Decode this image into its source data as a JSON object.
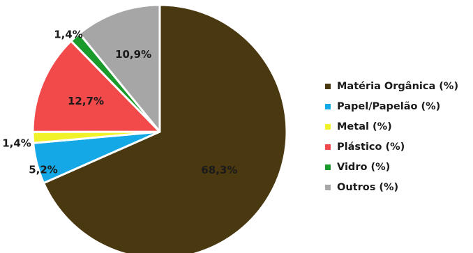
{
  "chart_data": {
    "type": "pie",
    "title": "",
    "legend_position": "right",
    "slices": [
      {
        "name": "Matéria Orgânica (%)",
        "value": 68.3,
        "label": "68,3%",
        "color": "#4a3810"
      },
      {
        "name": "Papel/Papelão (%)",
        "value": 5.2,
        "label": "5,2%",
        "color": "#14a9e6"
      },
      {
        "name": "Metal (%)",
        "value": 1.4,
        "label": "1,4%",
        "color": "#f2f22a"
      },
      {
        "name": "Plástico (%)",
        "value": 12.7,
        "label": "12,7%",
        "color": "#f24a4a"
      },
      {
        "name": "Vidro (%)",
        "value": 1.4,
        "label": "1,4%",
        "color": "#1a9a2a"
      },
      {
        "name": "Outros (%)",
        "value": 10.9,
        "label": "10,9%",
        "color": "#a6a6a6"
      }
    ]
  }
}
